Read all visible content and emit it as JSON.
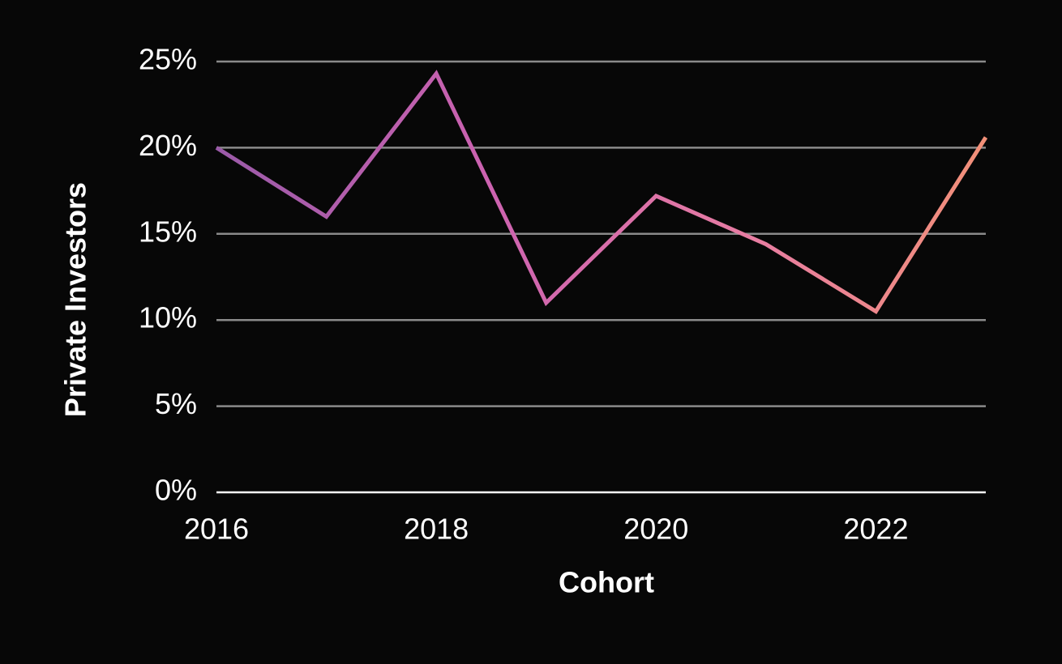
{
  "chart_data": {
    "type": "line",
    "x_label": "Cohort",
    "y_label": "Private Investors",
    "x": [
      2016,
      2017,
      2018,
      2019,
      2020,
      2021,
      2022,
      2023
    ],
    "series": [
      {
        "name": "Private Investors",
        "values": [
          20,
          16,
          24.3,
          11,
          17.2,
          14.4,
          10.5,
          20.6
        ]
      }
    ],
    "xlim": [
      2016,
      2023
    ],
    "xticks": [
      2016,
      2018,
      2020,
      2022
    ],
    "ylim": [
      0,
      25
    ],
    "yticks": [
      {
        "value": 0,
        "label": "0%"
      },
      {
        "value": 5,
        "label": "5%"
      },
      {
        "value": 10,
        "label": "10%"
      },
      {
        "value": 15,
        "label": "15%"
      },
      {
        "value": 20,
        "label": "20%"
      },
      {
        "value": 25,
        "label": "25%"
      }
    ],
    "grid": true
  }
}
